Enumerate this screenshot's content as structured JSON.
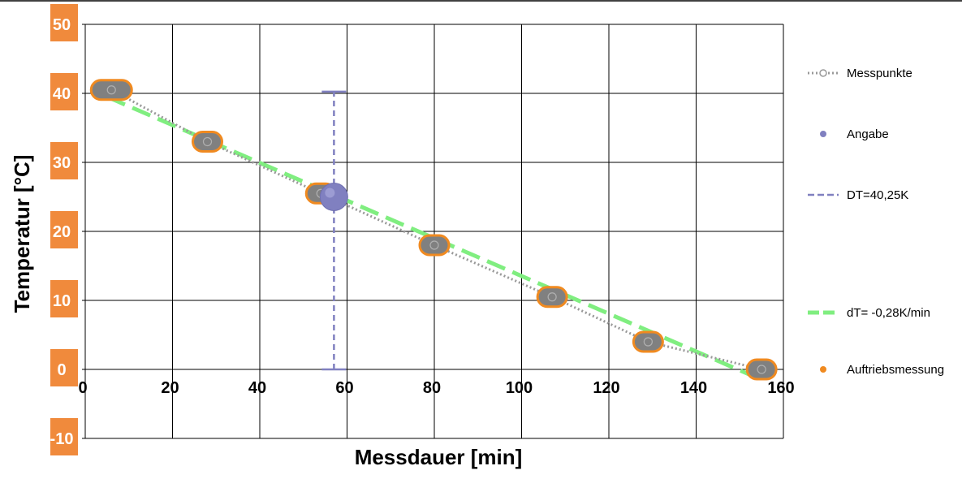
{
  "chart_data": {
    "type": "scatter",
    "title": "",
    "xlabel": "Messdauer [min]",
    "ylabel": "Temperatur [°C]",
    "xlim": [
      0,
      160
    ],
    "ylim": [
      -10,
      50
    ],
    "x_ticks": [
      "0",
      "20",
      "40",
      "60",
      "80",
      "100",
      "120",
      "140",
      "160"
    ],
    "y_ticks": [
      "50",
      "40",
      "30",
      "20",
      "10",
      "0",
      "-10"
    ],
    "grid": true,
    "legend_position": "right",
    "colors": {
      "messpunkte": "#999999",
      "angabe": "#8080c0",
      "dt": "#8080c0",
      "trend": "#80ee80",
      "auftrieb_fill": "#808080",
      "auftrieb_edge": "#f08a20",
      "tick_box": "#f08a3c"
    },
    "series": [
      {
        "name": "Messpunkte",
        "style": "dotted-line-circles",
        "x": [
          6,
          28,
          54,
          80,
          107,
          129,
          155
        ],
        "y": [
          40.5,
          33,
          25.5,
          18,
          10.5,
          4,
          0
        ]
      },
      {
        "name": "Angabe",
        "style": "marker",
        "x": [
          57
        ],
        "y": [
          25
        ]
      },
      {
        "name": "DT=40,25K",
        "style": "dashed-errorbar",
        "x": [
          57,
          57
        ],
        "y": [
          0,
          40.25
        ]
      },
      {
        "name": "dT= -0,28K/min",
        "style": "dashed-line",
        "x": [
          5,
          155
        ],
        "y": [
          39.5,
          -1.5
        ]
      },
      {
        "name": "Auftriebsmessung",
        "style": "marker",
        "x": [
          6,
          28,
          54,
          80,
          107,
          129,
          155
        ],
        "y": [
          40.5,
          33,
          25.5,
          18,
          10.5,
          4,
          0
        ]
      }
    ]
  }
}
